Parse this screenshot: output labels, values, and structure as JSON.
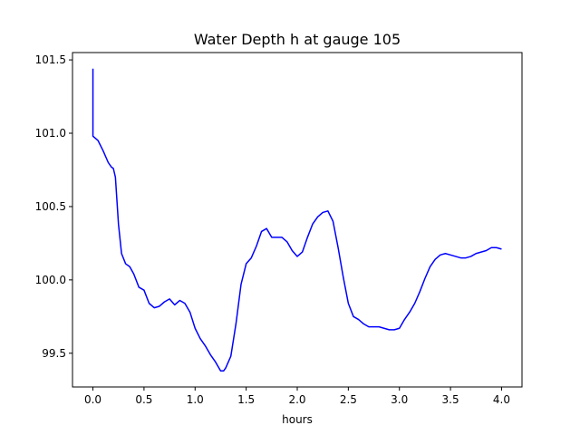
{
  "chart_data": {
    "type": "line",
    "title": "Water Depth h at gauge 105",
    "xlabel": "hours",
    "ylabel": "",
    "xlim": [
      -0.2,
      4.2
    ],
    "ylim": [
      99.27,
      101.55
    ],
    "xticks": [
      0.0,
      0.5,
      1.0,
      1.5,
      2.0,
      2.5,
      3.0,
      3.5,
      4.0
    ],
    "xtick_labels": [
      "0.0",
      "0.5",
      "1.0",
      "1.5",
      "2.0",
      "2.5",
      "3.0",
      "3.5",
      "4.0"
    ],
    "yticks": [
      99.5,
      100.0,
      100.5,
      101.0,
      101.5
    ],
    "ytick_labels": [
      "99.5",
      "100.0",
      "100.5",
      "101.0",
      "101.5"
    ],
    "grid": false,
    "legend": "none",
    "series": [
      {
        "color": "#0000ff",
        "x": [
          0.0,
          0.0,
          0.0,
          0.05,
          0.1,
          0.15,
          0.18,
          0.2,
          0.22,
          0.25,
          0.28,
          0.32,
          0.36,
          0.4,
          0.45,
          0.5,
          0.55,
          0.6,
          0.65,
          0.7,
          0.75,
          0.8,
          0.85,
          0.9,
          0.95,
          1.0,
          1.05,
          1.1,
          1.15,
          1.2,
          1.25,
          1.28,
          1.3,
          1.35,
          1.4,
          1.45,
          1.5,
          1.55,
          1.6,
          1.65,
          1.7,
          1.75,
          1.8,
          1.85,
          1.9,
          1.95,
          2.0,
          2.05,
          2.1,
          2.15,
          2.2,
          2.25,
          2.3,
          2.35,
          2.4,
          2.45,
          2.5,
          2.55,
          2.6,
          2.65,
          2.7,
          2.75,
          2.8,
          2.85,
          2.9,
          2.95,
          3.0,
          3.05,
          3.1,
          3.15,
          3.2,
          3.25,
          3.3,
          3.35,
          3.4,
          3.45,
          3.5,
          3.55,
          3.6,
          3.65,
          3.7,
          3.75,
          3.8,
          3.85,
          3.9,
          3.95,
          4.0
        ],
        "y": [
          101.44,
          101.44,
          100.98,
          100.95,
          100.88,
          100.8,
          100.77,
          100.76,
          100.7,
          100.38,
          100.18,
          100.11,
          100.09,
          100.04,
          99.95,
          99.93,
          99.84,
          99.81,
          99.82,
          99.85,
          99.87,
          99.83,
          99.86,
          99.84,
          99.78,
          99.67,
          99.6,
          99.55,
          99.49,
          99.44,
          99.38,
          99.38,
          99.4,
          99.48,
          99.7,
          99.97,
          100.11,
          100.15,
          100.23,
          100.33,
          100.35,
          100.29,
          100.29,
          100.29,
          100.26,
          100.2,
          100.16,
          100.19,
          100.29,
          100.38,
          100.43,
          100.46,
          100.47,
          100.4,
          100.22,
          100.02,
          99.84,
          99.75,
          99.73,
          99.7,
          99.68,
          99.68,
          99.68,
          99.67,
          99.66,
          99.66,
          99.67,
          99.73,
          99.78,
          99.84,
          99.92,
          100.01,
          100.09,
          100.14,
          100.17,
          100.18,
          100.17,
          100.16,
          100.15,
          100.15,
          100.16,
          100.18,
          100.19,
          100.2,
          100.22,
          100.22,
          100.21
        ]
      }
    ]
  }
}
